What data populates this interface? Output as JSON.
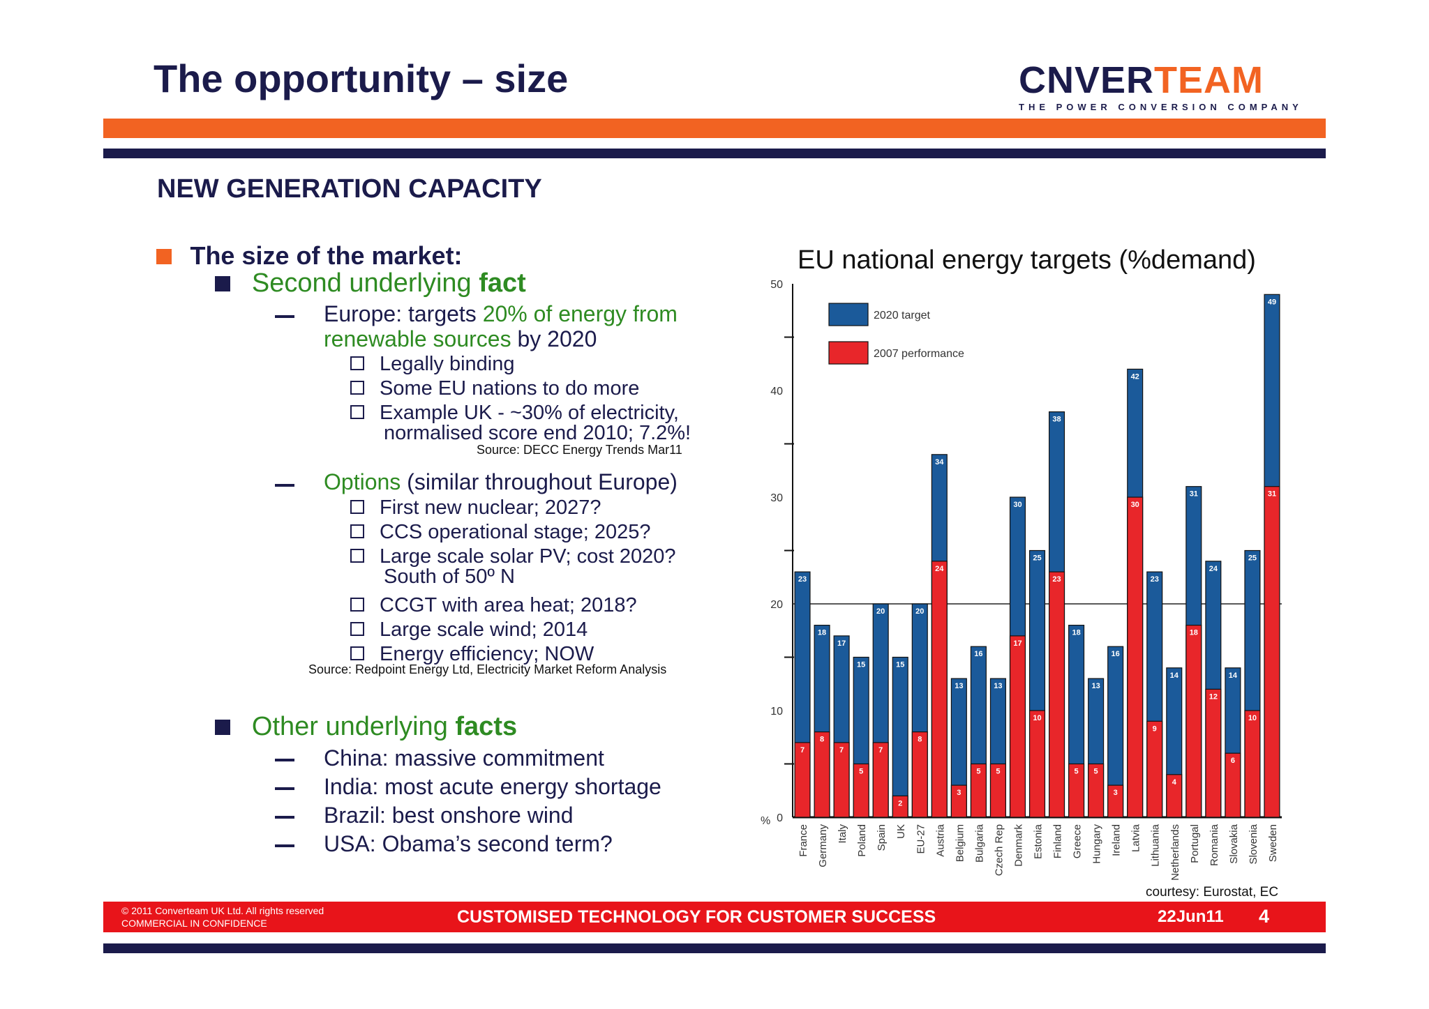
{
  "title": "The opportunity – size",
  "logo": {
    "brand_a": "C",
    "brand_b": "NVER",
    "brand_c": "TEAM",
    "tagline": "THE POWER CONVERSION COMPANY"
  },
  "section_heading": "NEW GENERATION CAPACITY",
  "bullets": {
    "l1": "The size of the market:",
    "fact1_a": "Second underlying ",
    "fact1_b": "fact",
    "europe_a": "Europe: targets ",
    "europe_b": "20% of energy from",
    "europe_c": "renewable sources",
    "europe_d": " by 2020",
    "sub1": [
      "Legally binding",
      "Some EU nations to do more",
      "Example UK - ~30% of electricity,"
    ],
    "sub1_cont": "normalised score end 2010; 7.2%!",
    "source1": "Source: DECC Energy Trends Mar11",
    "options_a": "Options",
    "options_b": " (similar throughout Europe)",
    "sub2": [
      "First new nuclear; 2027?",
      "CCS operational stage; 2025?",
      "Large scale solar PV; cost 2020?"
    ],
    "sub2_cont": "South of 50º N",
    "sub2b": [
      "CCGT with area heat; 2018?",
      "Large scale wind; 2014",
      "Energy efficiency; NOW"
    ],
    "source2": "Source: Redpoint Energy Ltd, Electricity Market Reform Analysis",
    "fact2_a": "Other underlying ",
    "fact2_b": "facts",
    "others": [
      "China: massive commitment",
      "India: most acute energy shortage",
      "Brazil: best onshore wind",
      "USA: Obama’s second term?"
    ]
  },
  "chart_data": {
    "type": "bar",
    "title": "EU national energy targets (%demand)",
    "ylabel": "%",
    "ylim": [
      0,
      50
    ],
    "yticks": [
      0,
      10,
      20,
      30,
      40,
      50
    ],
    "reference_line": 20,
    "legend_position": "top-left",
    "categories": [
      "France",
      "Germany",
      "Italy",
      "Poland",
      "Spain",
      "UK",
      "EU-27",
      "Austria",
      "Belgium",
      "Bulgaria",
      "Czech Rep",
      "Denmark",
      "Estonia",
      "Finland",
      "Greece",
      "Hungary",
      "Ireland",
      "Latvia",
      "Lithuania",
      "Netherlands",
      "Portugal",
      "Romania",
      "Slovakia",
      "Slovenia",
      "Sweden"
    ],
    "series": [
      {
        "name": "2020 target",
        "color": "#1b5a9a",
        "values": [
          23,
          18,
          17,
          15,
          20,
          15,
          20,
          34,
          13,
          16,
          13,
          30,
          25,
          38,
          18,
          13,
          16,
          42,
          23,
          14,
          31,
          24,
          14,
          25,
          49
        ]
      },
      {
        "name": "2007 performance",
        "color": "#e8262a",
        "values": [
          7,
          8,
          7,
          5,
          7,
          2,
          8,
          24,
          3,
          5,
          5,
          17,
          10,
          23,
          5,
          5,
          3,
          30,
          9,
          4,
          18,
          12,
          6,
          10,
          31
        ]
      }
    ],
    "source_note": "courtesy: Eurostat, EC"
  },
  "footer": {
    "copyright": "© 2011 Converteam UK Ltd. All rights reserved",
    "confidential": "COMMERCIAL IN CONFIDENCE",
    "tagline": "CUSTOMISED TECHNOLOGY FOR CUSTOMER SUCCESS",
    "date": "22Jun11",
    "page": "4"
  }
}
